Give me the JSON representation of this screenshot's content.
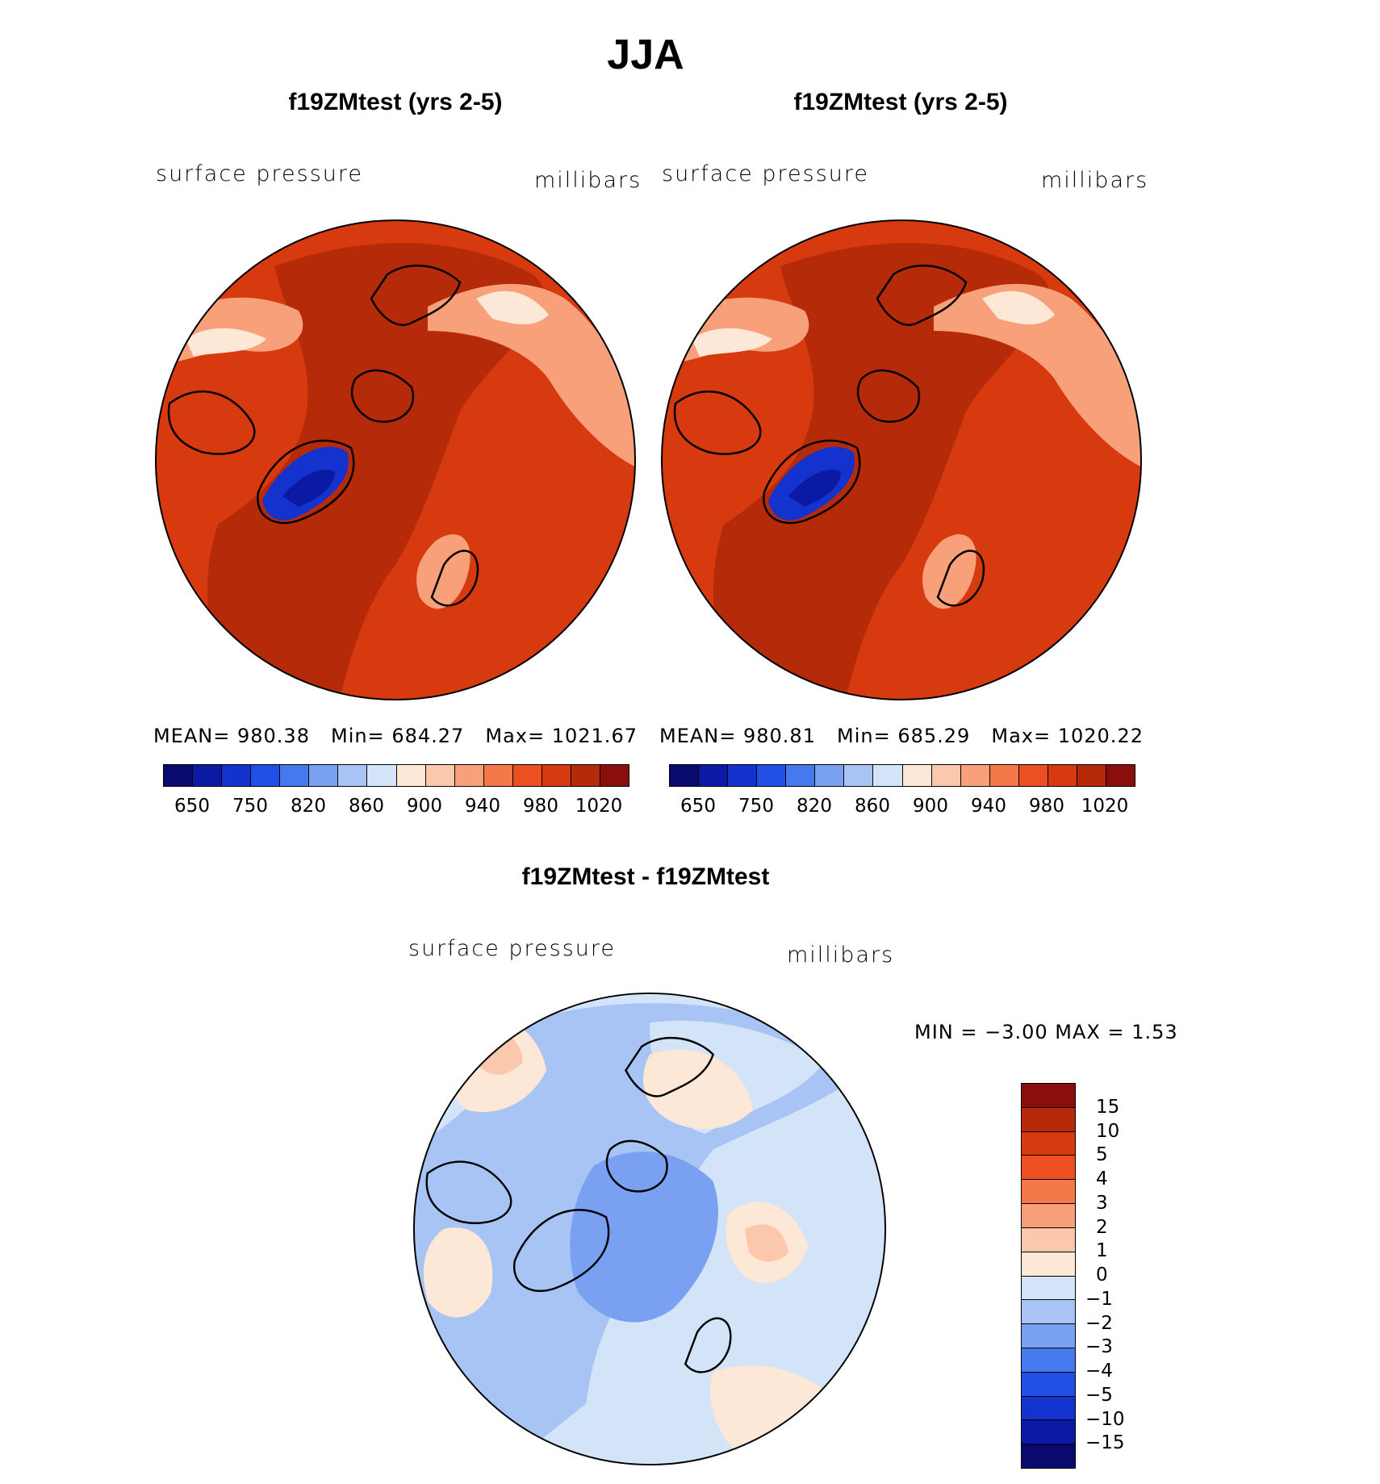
{
  "title": "JJA",
  "panels": [
    {
      "title": "f19ZMtest (yrs 2-5)",
      "left_label": "surface pressure",
      "right_label": "millibars",
      "stats": {
        "mean": "MEAN= 980.38",
        "min": "Min= 684.27",
        "max": "Max= 1021.67"
      }
    },
    {
      "title": "f19ZMtest (yrs 2-5)",
      "left_label": "surface pressure",
      "right_label": "millibars",
      "stats": {
        "mean": "MEAN= 980.81",
        "min": "Min= 685.29",
        "max": "Max= 1020.22"
      }
    }
  ],
  "colorbar_top": {
    "colors": [
      "#0a0a6e",
      "#0a1aa5",
      "#1432cd",
      "#2250e6",
      "#4678ee",
      "#7aa0f2",
      "#a8c4f5",
      "#d4e4f8",
      "#fde8d8",
      "#fbc8ad",
      "#f8a07a",
      "#f4784a",
      "#ec5022",
      "#d63a0e",
      "#b52a08",
      "#8a0e0a"
    ],
    "tick_labels": [
      "650",
      "750",
      "820",
      "860",
      "900",
      "940",
      "980",
      "1020"
    ]
  },
  "diff": {
    "title": "f19ZMtest - f19ZMtest",
    "left_label": "surface pressure",
    "right_label": "millibars",
    "minmax": "MIN = −3.00 MAX = 1.53",
    "colorbar": {
      "colors": [
        "#8a0e0a",
        "#b52a08",
        "#d63a0e",
        "#ec5022",
        "#f4784a",
        "#f8a07a",
        "#fbc8ad",
        "#fde8d8",
        "#d4e4f8",
        "#a8c4f5",
        "#7aa0f2",
        "#4678ee",
        "#2250e6",
        "#1432cd",
        "#0a1aa5",
        "#0a0a6e"
      ],
      "tick_labels": [
        "15",
        "10",
        "5",
        "4",
        "3",
        "2",
        "1",
        "0",
        "−1",
        "−2",
        "−3",
        "−4",
        "−5",
        "−10",
        "−15"
      ]
    }
  },
  "map_colors": {
    "land_deep": "#b52a08",
    "land_mid": "#d63a0e",
    "land_orange": "#ec5022",
    "high_terrain": "#f8a07a",
    "light": "#fde8d8",
    "greenland": "#1432cd",
    "greenland_core": "#0a1aa5",
    "diff_base": "#d4e4f8",
    "diff_mid": "#a8c4f5",
    "diff_deep": "#7aa0f2",
    "diff_pos": "#fde8d8",
    "diff_pos2": "#fbc8ad"
  }
}
